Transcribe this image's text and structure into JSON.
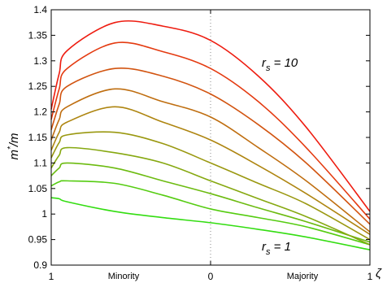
{
  "chart_data": {
    "type": "line",
    "title": "",
    "ylabel_main": "m",
    "ylabel_sup": "*",
    "ylabel_tail": "/m",
    "xlabel": "ζ",
    "xlim": [
      -1,
      1
    ],
    "ylim": [
      0.9,
      1.4
    ],
    "grid": false,
    "x_ticks": [
      {
        "value": -1,
        "label": "1"
      },
      {
        "value": 0,
        "label": "0"
      },
      {
        "value": 1,
        "label": "1"
      }
    ],
    "y_ticks": [
      {
        "value": 0.9,
        "label": "0.9"
      },
      {
        "value": 0.95,
        "label": "0.95"
      },
      {
        "value": 1.0,
        "label": "1"
      },
      {
        "value": 1.05,
        "label": "1.05"
      },
      {
        "value": 1.1,
        "label": "1.1"
      },
      {
        "value": 1.15,
        "label": "1.15"
      },
      {
        "value": 1.2,
        "label": "1.2"
      },
      {
        "value": 1.25,
        "label": "1.25"
      },
      {
        "value": 1.3,
        "label": "1.3"
      },
      {
        "value": 1.35,
        "label": "1.35"
      },
      {
        "value": 1.4,
        "label": "1.4"
      }
    ],
    "region_labels": {
      "left": "Minority",
      "right": "Majority"
    },
    "vertical_reference_line": {
      "x": 0,
      "style": "dotted"
    },
    "annotations": [
      {
        "text": "r",
        "sub": "s",
        "tail": " = 10",
        "x": 0.33,
        "y": 1.31
      },
      {
        "text": "r",
        "sub": "s",
        "tail": " = 1",
        "x": 0.33,
        "y": 0.95
      }
    ],
    "series": [
      {
        "color": "#33dd11",
        "x": [
          -1,
          -0.95,
          -0.9,
          -0.6,
          -0.3,
          0,
          0.3,
          0.6,
          1
        ],
        "y": [
          1.032,
          1.03,
          1.024,
          1.005,
          0.993,
          0.983,
          0.97,
          0.955,
          0.93
        ]
      },
      {
        "color": "#55cc11",
        "x": [
          -1,
          -0.95,
          -0.9,
          -0.6,
          -0.3,
          0,
          0.3,
          0.6,
          1
        ],
        "y": [
          1.055,
          1.063,
          1.065,
          1.06,
          1.037,
          1.01,
          0.993,
          0.975,
          0.94
        ]
      },
      {
        "color": "#6cbb10",
        "x": [
          -1,
          -0.95,
          -0.9,
          -0.6,
          -0.3,
          0,
          0.3,
          0.6,
          1
        ],
        "y": [
          1.075,
          1.09,
          1.1,
          1.09,
          1.065,
          1.04,
          1.012,
          0.985,
          0.945
        ]
      },
      {
        "color": "#86a810",
        "x": [
          -1,
          -0.95,
          -0.9,
          -0.6,
          -0.3,
          0,
          0.3,
          0.6,
          1
        ],
        "y": [
          1.09,
          1.115,
          1.13,
          1.12,
          1.1,
          1.065,
          1.03,
          0.995,
          0.94
        ]
      },
      {
        "color": "#9a9810",
        "x": [
          -1,
          -0.95,
          -0.9,
          -0.6,
          -0.3,
          0,
          0.3,
          0.6,
          1
        ],
        "y": [
          1.11,
          1.14,
          1.155,
          1.16,
          1.138,
          1.1,
          1.06,
          1.02,
          0.95
        ]
      },
      {
        "color": "#ae8510",
        "x": [
          -1,
          -0.95,
          -0.9,
          -0.6,
          -0.3,
          0,
          0.3,
          0.6,
          1
        ],
        "y": [
          1.125,
          1.16,
          1.18,
          1.21,
          1.18,
          1.145,
          1.095,
          1.04,
          0.96
        ]
      },
      {
        "color": "#bf6e10",
        "x": [
          -1,
          -0.95,
          -0.9,
          -0.6,
          -0.3,
          0,
          0.3,
          0.6,
          1
        ],
        "y": [
          1.145,
          1.185,
          1.21,
          1.245,
          1.22,
          1.19,
          1.13,
          1.065,
          0.965
        ]
      },
      {
        "color": "#d25410",
        "x": [
          -1,
          -0.95,
          -0.9,
          -0.6,
          -0.3,
          0,
          0.3,
          0.6,
          1
        ],
        "y": [
          1.165,
          1.215,
          1.25,
          1.285,
          1.27,
          1.235,
          1.175,
          1.1,
          0.98
        ]
      },
      {
        "color": "#e43a10",
        "x": [
          -1,
          -0.95,
          -0.9,
          -0.6,
          -0.3,
          0,
          0.3,
          0.6,
          1
        ],
        "y": [
          1.185,
          1.245,
          1.285,
          1.335,
          1.318,
          1.285,
          1.22,
          1.13,
          0.99
        ]
      },
      {
        "color": "#ee1c10",
        "x": [
          -1,
          -0.95,
          -0.9,
          -0.6,
          -0.3,
          0,
          0.3,
          0.6,
          1
        ],
        "y": [
          1.205,
          1.275,
          1.32,
          1.375,
          1.368,
          1.34,
          1.27,
          1.17,
          1.005
        ]
      }
    ]
  }
}
